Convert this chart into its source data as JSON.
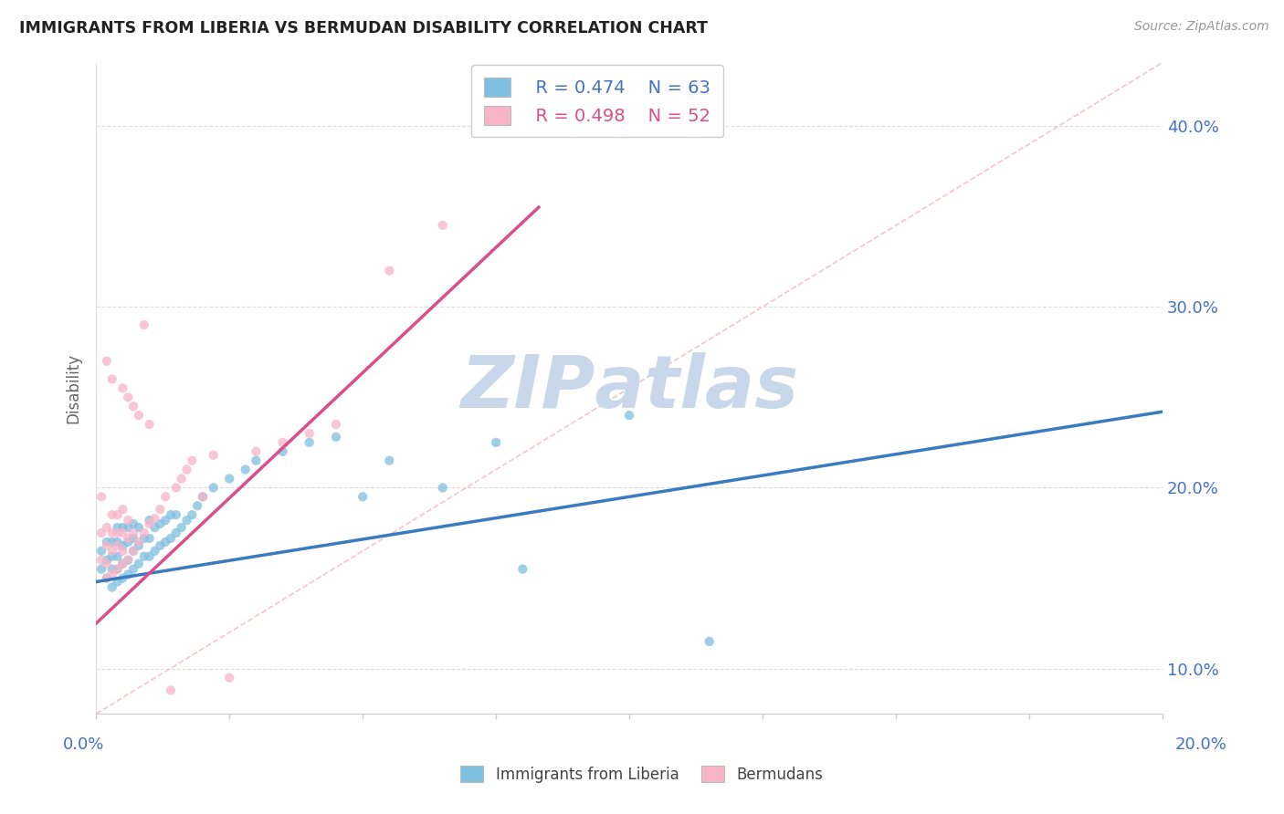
{
  "title": "IMMIGRANTS FROM LIBERIA VS BERMUDAN DISABILITY CORRELATION CHART",
  "source": "Source: ZipAtlas.com",
  "legend_blue_label": "Immigrants from Liberia",
  "legend_pink_label": "Bermudans",
  "legend_blue_r": "R = 0.474",
  "legend_blue_n": "N = 63",
  "legend_pink_r": "R = 0.498",
  "legend_pink_n": "N = 52",
  "blue_color": "#7fbfdf",
  "pink_color": "#f8b4c8",
  "trend_blue_color": "#3a7abf",
  "trend_pink_color": "#d94f8a",
  "ref_line_color": "#f0c0c8",
  "watermark_color": "#c8d8ea",
  "xlim": [
    0.0,
    0.2
  ],
  "ylim": [
    0.075,
    0.435
  ],
  "yticks": [
    0.1,
    0.2,
    0.3,
    0.4
  ],
  "ytick_labels": [
    "10.0%",
    "20.0%",
    "30.0%",
    "40.0%"
  ],
  "blue_x": [
    0.001,
    0.001,
    0.002,
    0.002,
    0.002,
    0.003,
    0.003,
    0.003,
    0.003,
    0.004,
    0.004,
    0.004,
    0.004,
    0.004,
    0.005,
    0.005,
    0.005,
    0.005,
    0.006,
    0.006,
    0.006,
    0.006,
    0.007,
    0.007,
    0.007,
    0.007,
    0.008,
    0.008,
    0.008,
    0.009,
    0.009,
    0.01,
    0.01,
    0.01,
    0.011,
    0.011,
    0.012,
    0.012,
    0.013,
    0.013,
    0.014,
    0.014,
    0.015,
    0.015,
    0.016,
    0.017,
    0.018,
    0.019,
    0.02,
    0.022,
    0.025,
    0.028,
    0.03,
    0.035,
    0.04,
    0.045,
    0.05,
    0.055,
    0.065,
    0.075,
    0.08,
    0.1,
    0.115
  ],
  "blue_y": [
    0.155,
    0.165,
    0.15,
    0.16,
    0.17,
    0.145,
    0.155,
    0.162,
    0.17,
    0.148,
    0.155,
    0.162,
    0.17,
    0.178,
    0.15,
    0.158,
    0.168,
    0.178,
    0.152,
    0.16,
    0.17,
    0.178,
    0.155,
    0.165,
    0.172,
    0.18,
    0.158,
    0.168,
    0.178,
    0.162,
    0.172,
    0.162,
    0.172,
    0.182,
    0.165,
    0.178,
    0.168,
    0.18,
    0.17,
    0.182,
    0.172,
    0.185,
    0.175,
    0.185,
    0.178,
    0.182,
    0.185,
    0.19,
    0.195,
    0.2,
    0.205,
    0.21,
    0.215,
    0.22,
    0.225,
    0.228,
    0.195,
    0.215,
    0.2,
    0.225,
    0.155,
    0.24,
    0.115
  ],
  "pink_x": [
    0.001,
    0.001,
    0.001,
    0.002,
    0.002,
    0.002,
    0.002,
    0.002,
    0.003,
    0.003,
    0.003,
    0.003,
    0.003,
    0.004,
    0.004,
    0.004,
    0.004,
    0.005,
    0.005,
    0.005,
    0.005,
    0.005,
    0.006,
    0.006,
    0.006,
    0.006,
    0.007,
    0.007,
    0.007,
    0.008,
    0.008,
    0.009,
    0.009,
    0.01,
    0.01,
    0.011,
    0.012,
    0.013,
    0.014,
    0.015,
    0.016,
    0.017,
    0.018,
    0.02,
    0.022,
    0.025,
    0.03,
    0.035,
    0.04,
    0.045,
    0.055,
    0.065
  ],
  "pink_y": [
    0.16,
    0.175,
    0.195,
    0.15,
    0.158,
    0.168,
    0.178,
    0.27,
    0.152,
    0.165,
    0.175,
    0.185,
    0.26,
    0.155,
    0.168,
    0.175,
    0.185,
    0.158,
    0.165,
    0.175,
    0.188,
    0.255,
    0.16,
    0.172,
    0.182,
    0.25,
    0.165,
    0.175,
    0.245,
    0.17,
    0.24,
    0.175,
    0.29,
    0.18,
    0.235,
    0.183,
    0.188,
    0.195,
    0.088,
    0.2,
    0.205,
    0.21,
    0.215,
    0.195,
    0.218,
    0.095,
    0.22,
    0.225,
    0.23,
    0.235,
    0.32,
    0.345
  ],
  "blue_trend_x": [
    0.0,
    0.2
  ],
  "blue_trend_y": [
    0.148,
    0.242
  ],
  "pink_trend_x": [
    0.0,
    0.083
  ],
  "pink_trend_y": [
    0.125,
    0.355
  ],
  "ref_line_x": [
    0.0,
    0.2
  ],
  "ref_line_y": [
    0.075,
    0.435
  ]
}
